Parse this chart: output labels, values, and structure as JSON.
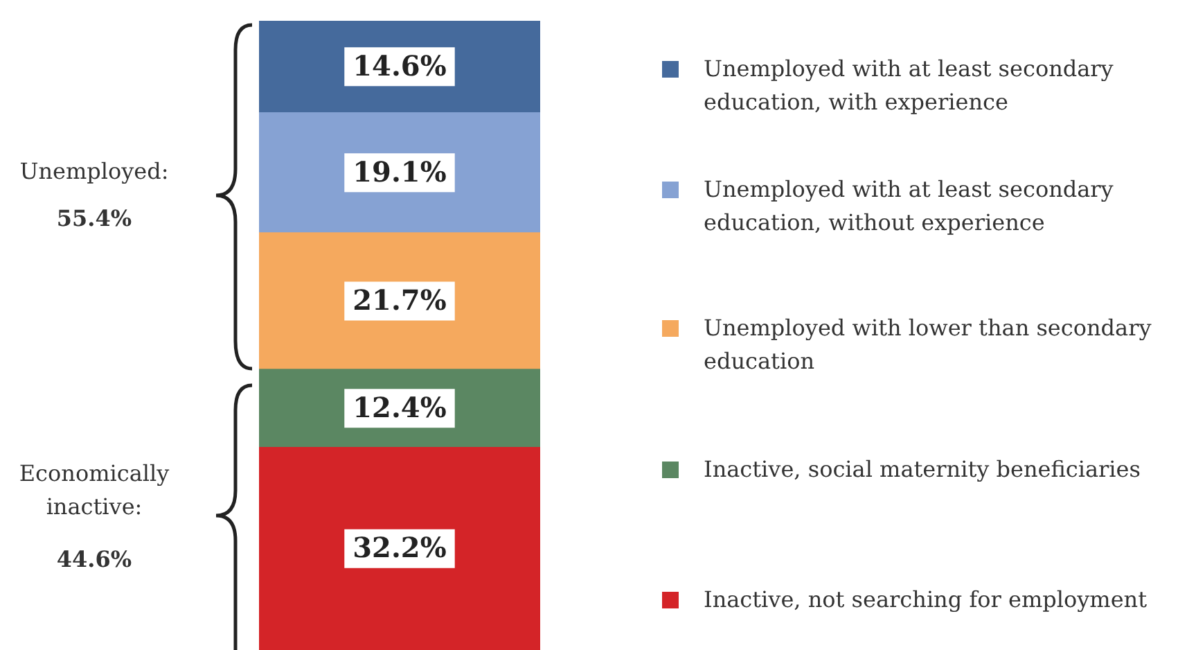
{
  "chart_data": {
    "type": "bar",
    "stacked": true,
    "categories": [
      null
    ],
    "ylim": [
      0,
      100
    ],
    "legend": "right",
    "series": [
      {
        "name": "Inactive, not searching for employment",
        "color": "#d42428",
        "values": [
          32.2
        ],
        "value_labels": [
          "32.2%"
        ]
      },
      {
        "name": "Inactive, social maternity beneficiaries",
        "color": "#5b8762",
        "values": [
          12.4
        ],
        "value_labels": [
          "12.4%"
        ]
      },
      {
        "name": "Unemployed with lower than secondary education",
        "color": "#f5a95e",
        "values": [
          21.7
        ],
        "value_labels": [
          "21.7%"
        ]
      },
      {
        "name": "Unemployed with at least secondary education, without experience",
        "color": "#86a2d3",
        "values": [
          19.1
        ],
        "value_labels": [
          "19.1%"
        ]
      },
      {
        "name": "Unemployed with at least secondary education, with experience",
        "color": "#456a9c",
        "values": [
          14.6
        ],
        "value_labels": [
          "14.6%"
        ]
      }
    ],
    "annotations": [
      "Unemployed:",
      "55.4%",
      "Economically inactive:",
      "44.6%"
    ]
  }
}
